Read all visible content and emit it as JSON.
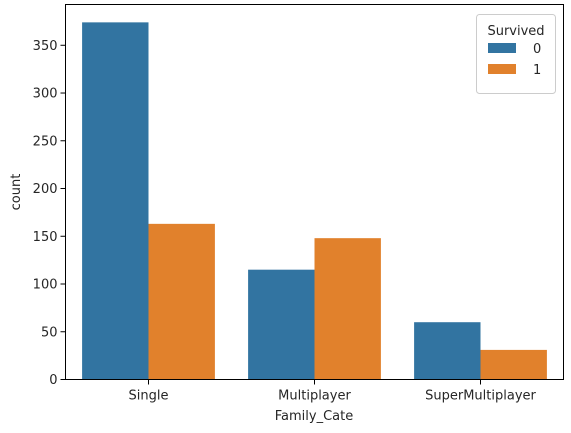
{
  "chart_data": {
    "type": "bar",
    "title": "",
    "xlabel": "Family_Cate",
    "ylabel": "count",
    "categories": [
      "Single",
      "Multiplayer",
      "SuperMultiplayer"
    ],
    "series": [
      {
        "name": "0",
        "values": [
          374,
          115,
          60
        ],
        "color": "#3274a1"
      },
      {
        "name": "1",
        "values": [
          163,
          148,
          31
        ],
        "color": "#e1812c"
      }
    ],
    "ylim": [
      0,
      392.7
    ],
    "yticks": [
      0,
      50,
      100,
      150,
      200,
      250,
      300,
      350
    ],
    "grid": false,
    "legend": {
      "title": "Survived",
      "placement": "top-right"
    }
  }
}
